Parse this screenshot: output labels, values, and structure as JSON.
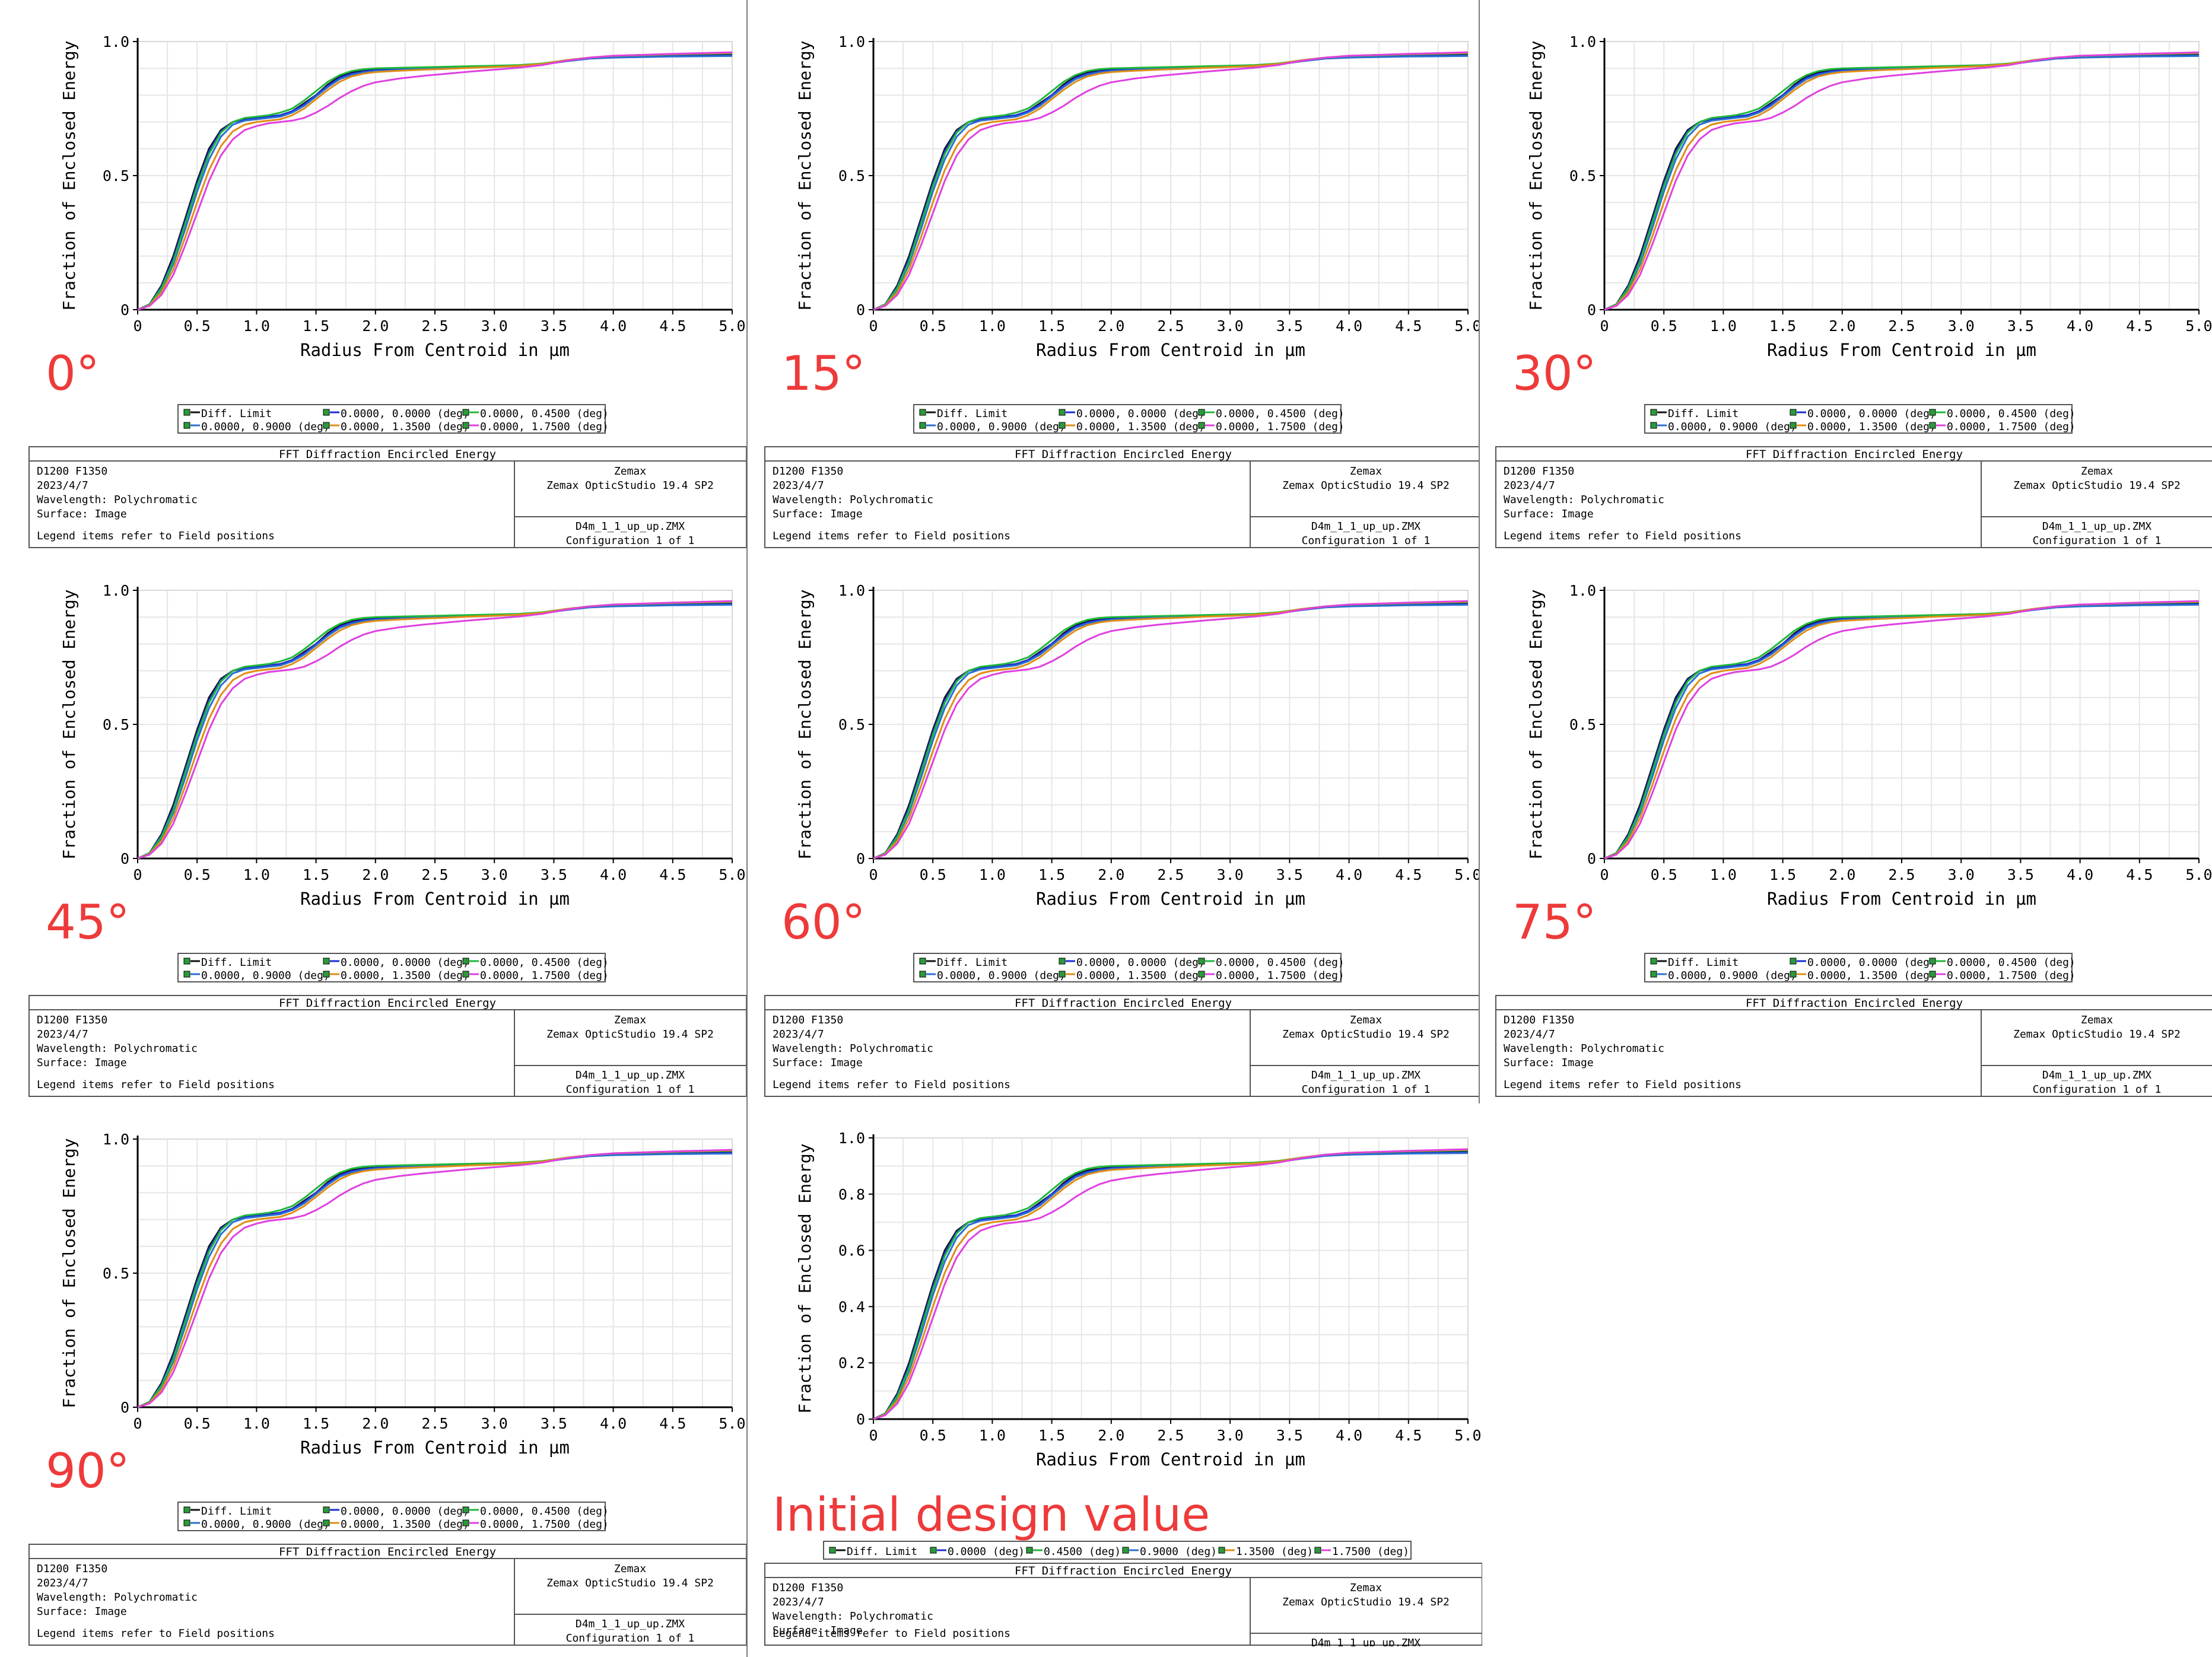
{
  "colors": {
    "diff": "#111111",
    "f0": "#1c2bd6",
    "f045": "#1fb83a",
    "f090": "#2b6fd0",
    "f135": "#e08d14",
    "f175": "#e040e0",
    "angle_text": "#ee3a3a"
  },
  "common": {
    "ylabel": "Fraction of Enclosed Energy",
    "xlabel": "Radius From Centroid in µm",
    "xticks": [
      "0",
      "0.5",
      "1.0",
      "1.5",
      "2.0",
      "2.5",
      "3.0",
      "3.5",
      "4.0",
      "4.5",
      "5.0"
    ],
    "yticks3": [
      "0",
      "0.5",
      "1.0"
    ],
    "yticks6": [
      "0",
      "0.2",
      "0.4",
      "0.6",
      "0.8",
      "1.0"
    ],
    "info_title": "FFT Diffraction Encircled Energy",
    "info_left": [
      "D1200 F1350",
      "2023/4/7",
      "Wavelength: Polychromatic",
      "Surface: Image"
    ],
    "info_note": "Legend items refer to Field positions",
    "info_right_top": [
      "Zemax",
      "Zemax OpticStudio 19.4 SP2"
    ],
    "info_right_bottom": [
      "D4m_1_1_up_up.ZMX",
      "Configuration 1 of 1"
    ],
    "legend6": [
      "Diff. Limit",
      "0.0000, 0.0000 (deg)",
      "0.0000, 0.4500 (deg)",
      "0.0000, 0.9000 (deg)",
      "0.0000, 1.3500 (deg)",
      "0.0000, 1.7500 (deg)"
    ],
    "legend_init": [
      "Diff. Limit",
      "0.0000 (deg)",
      "0.4500 (deg)",
      "0.9000 (deg)",
      "1.3500 (deg)",
      "1.7500 (deg)"
    ]
  },
  "panels": [
    {
      "label": "0°"
    },
    {
      "label": "15°"
    },
    {
      "label": "30°"
    },
    {
      "label": "45°"
    },
    {
      "label": "60°"
    },
    {
      "label": "75°"
    },
    {
      "label": "90°"
    },
    {
      "label": "Initial design value"
    }
  ],
  "chart_data": {
    "type": "line",
    "xlabel": "Radius From Centroid in µm",
    "ylabel": "Fraction of Enclosed Energy",
    "xlim": [
      0,
      5.0
    ],
    "ylim": [
      0,
      1.0
    ],
    "x": [
      0,
      0.1,
      0.2,
      0.3,
      0.4,
      0.5,
      0.6,
      0.7,
      0.8,
      0.9,
      1.0,
      1.1,
      1.2,
      1.3,
      1.4,
      1.5,
      1.6,
      1.7,
      1.8,
      1.9,
      2.0,
      2.2,
      2.4,
      2.6,
      2.8,
      3.0,
      3.2,
      3.4,
      3.6,
      3.8,
      4.0,
      4.5,
      5.0
    ],
    "series": [
      {
        "name": "Diff. Limit",
        "values": [
          0,
          0.02,
          0.09,
          0.2,
          0.34,
          0.48,
          0.6,
          0.67,
          0.7,
          0.71,
          0.715,
          0.72,
          0.725,
          0.74,
          0.77,
          0.8,
          0.84,
          0.87,
          0.885,
          0.89,
          0.895,
          0.897,
          0.9,
          0.902,
          0.905,
          0.907,
          0.91,
          0.915,
          0.93,
          0.94,
          0.945,
          0.948,
          0.95
        ]
      },
      {
        "name": "0.0000, 0.0000 (deg)",
        "values": [
          0,
          0.02,
          0.085,
          0.19,
          0.33,
          0.47,
          0.59,
          0.665,
          0.7,
          0.71,
          0.715,
          0.72,
          0.725,
          0.74,
          0.765,
          0.8,
          0.835,
          0.865,
          0.88,
          0.888,
          0.893,
          0.896,
          0.9,
          0.902,
          0.905,
          0.907,
          0.91,
          0.915,
          0.928,
          0.938,
          0.943,
          0.946,
          0.948
        ]
      },
      {
        "name": "0.0000, 0.4500 (deg)",
        "values": [
          0,
          0.019,
          0.08,
          0.18,
          0.32,
          0.46,
          0.58,
          0.66,
          0.7,
          0.715,
          0.72,
          0.725,
          0.735,
          0.75,
          0.78,
          0.815,
          0.85,
          0.875,
          0.89,
          0.897,
          0.9,
          0.902,
          0.904,
          0.906,
          0.908,
          0.91,
          0.912,
          0.918,
          0.93,
          0.94,
          0.946,
          0.952,
          0.956
        ]
      },
      {
        "name": "0.0000, 0.9000 (deg)",
        "values": [
          0,
          0.018,
          0.075,
          0.17,
          0.3,
          0.44,
          0.56,
          0.645,
          0.69,
          0.705,
          0.71,
          0.715,
          0.72,
          0.735,
          0.76,
          0.795,
          0.83,
          0.86,
          0.876,
          0.885,
          0.89,
          0.894,
          0.898,
          0.9,
          0.903,
          0.905,
          0.908,
          0.914,
          0.926,
          0.936,
          0.94,
          0.944,
          0.946
        ]
      },
      {
        "name": "0.0000, 1.3500 (deg)",
        "values": [
          0,
          0.016,
          0.065,
          0.15,
          0.27,
          0.4,
          0.52,
          0.61,
          0.665,
          0.69,
          0.7,
          0.705,
          0.71,
          0.725,
          0.75,
          0.785,
          0.82,
          0.85,
          0.87,
          0.88,
          0.886,
          0.891,
          0.895,
          0.898,
          0.902,
          0.905,
          0.909,
          0.916,
          0.93,
          0.94,
          0.947,
          0.953,
          0.958
        ]
      },
      {
        "name": "0.0000, 1.7500 (deg)",
        "values": [
          0,
          0.014,
          0.055,
          0.13,
          0.24,
          0.36,
          0.48,
          0.575,
          0.635,
          0.67,
          0.685,
          0.695,
          0.7,
          0.705,
          0.715,
          0.735,
          0.76,
          0.79,
          0.815,
          0.835,
          0.848,
          0.862,
          0.872,
          0.88,
          0.888,
          0.895,
          0.902,
          0.912,
          0.928,
          0.94,
          0.947,
          0.954,
          0.96
        ]
      }
    ]
  }
}
